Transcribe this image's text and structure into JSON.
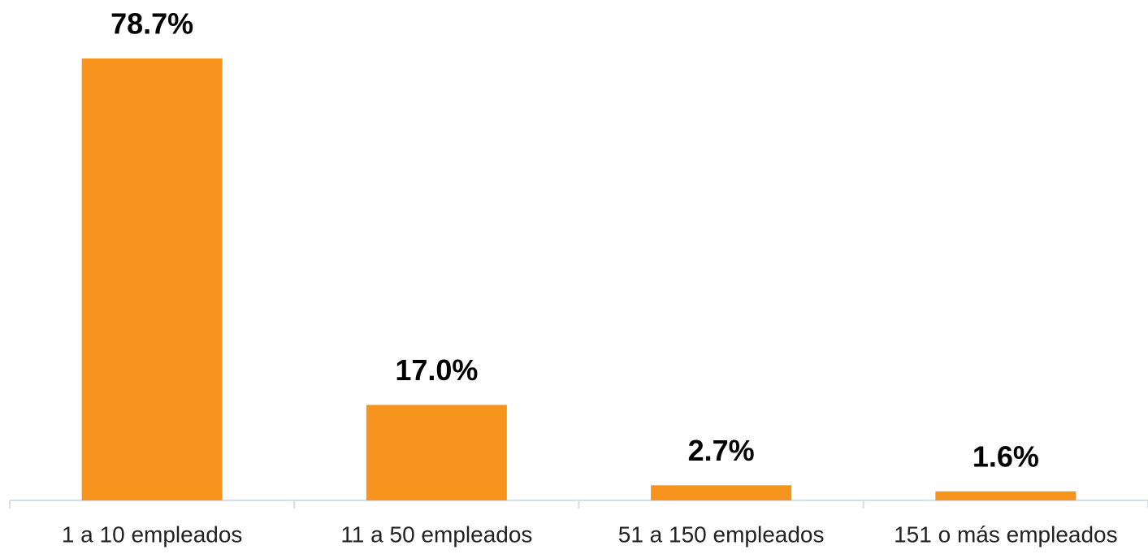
{
  "chart_data": {
    "type": "bar",
    "categories": [
      "1 a 10 empleados",
      "11 a 50 empleados",
      "51 a 150 empleados",
      "151 o más empleados"
    ],
    "values": [
      78.7,
      17.0,
      2.7,
      1.6
    ],
    "value_labels": [
      "78.7%",
      "17.0%",
      "2.7%",
      "1.6%"
    ],
    "color": "#f7941d"
  }
}
